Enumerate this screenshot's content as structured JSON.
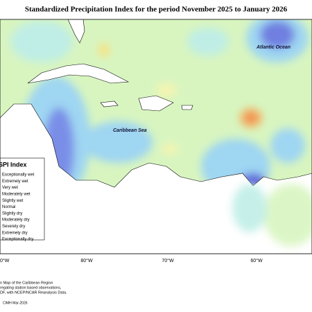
{
  "header": {
    "title": "Standardized Precipitation Index for the period November 2025 to January 2026"
  },
  "map": {
    "labels": [
      "Atlantic Ocean",
      "Caribbean Sea"
    ],
    "longitude_labels": [
      "0°W",
      "80°W",
      "70°W",
      "60°W"
    ]
  },
  "legend": {
    "title": "SPI Index",
    "items": [
      {
        "label": "Exceptionally wet",
        "color": "#5b5bd8"
      },
      {
        "label": "Extremely wet",
        "color": "#7a8ee8"
      },
      {
        "label": "Very wet",
        "color": "#8fb6f0"
      },
      {
        "label": "Moderately wet",
        "color": "#9fd6f2"
      },
      {
        "label": "Slightly wet",
        "color": "#bfeee6"
      },
      {
        "label": "Normal",
        "color": "#d8f5c0"
      },
      {
        "label": "Slightly dry",
        "color": "#f5f5b0"
      },
      {
        "label": "Moderately dry",
        "color": "#f8e080"
      },
      {
        "label": "Severely dry",
        "color": "#f5b060"
      },
      {
        "label": "Extremely dry",
        "color": "#ee7a50"
      },
      {
        "label": "Exceptionally dry",
        "color": "#cc3030"
      }
    ]
  },
  "footer": {
    "lines": [
      "n Map of the Caribbean Region",
      "regating station based observations,",
      "DF, with NCEP/NCAR Reanalysis Data."
    ],
    "credit": "CIMH Mar-2026"
  }
}
